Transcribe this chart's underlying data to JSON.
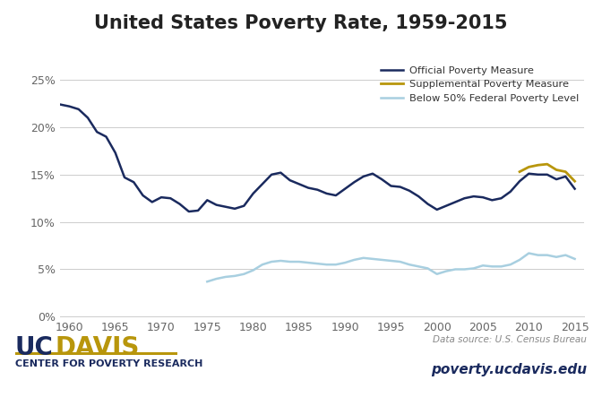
{
  "title": "United States Poverty Rate, 1959-2015",
  "title_fontsize": 15,
  "background_color": "#ffffff",
  "plot_bg_color": "#ffffff",
  "grid_color": "#cccccc",
  "official_color": "#1a2a5e",
  "supplemental_color": "#b8960c",
  "below50_color": "#a8cfe0",
  "official_label": "Official Poverty Measure",
  "supplemental_label": "Supplemental Poverty Measure",
  "below50_label": "Below 50% Federal Poverty Level",
  "data_source": "Data source: U.S. Census Bureau",
  "website": "poverty.ucdavis.edu",
  "ucdavis_uc": "UC",
  "ucdavis_davis": "DAVIS",
  "center_text": "CENTER FOR POVERTY RESEARCH",
  "ucdavis_gold": "#b8960c",
  "ucdavis_blue": "#1a2a5e",
  "ylim": [
    0,
    27
  ],
  "yticks": [
    0,
    5,
    10,
    15,
    20,
    25
  ],
  "ytick_labels": [
    "0%",
    "5%",
    "10%",
    "15%",
    "20%",
    "25%"
  ],
  "xticks": [
    1960,
    1965,
    1970,
    1975,
    1980,
    1985,
    1990,
    1995,
    2000,
    2005,
    2010,
    2015
  ],
  "official_years": [
    1959,
    1960,
    1961,
    1962,
    1963,
    1964,
    1965,
    1966,
    1967,
    1968,
    1969,
    1970,
    1971,
    1972,
    1973,
    1974,
    1975,
    1976,
    1977,
    1978,
    1979,
    1980,
    1981,
    1982,
    1983,
    1984,
    1985,
    1986,
    1987,
    1988,
    1989,
    1990,
    1991,
    1992,
    1993,
    1994,
    1995,
    1996,
    1997,
    1998,
    1999,
    2000,
    2001,
    2002,
    2003,
    2004,
    2005,
    2006,
    2007,
    2008,
    2009,
    2010,
    2011,
    2012,
    2013,
    2014,
    2015
  ],
  "official_values": [
    22.4,
    22.2,
    21.9,
    21.0,
    19.5,
    19.0,
    17.3,
    14.7,
    14.2,
    12.8,
    12.1,
    12.6,
    12.5,
    11.9,
    11.1,
    11.2,
    12.3,
    11.8,
    11.6,
    11.4,
    11.7,
    13.0,
    14.0,
    15.0,
    15.2,
    14.4,
    14.0,
    13.6,
    13.4,
    13.0,
    12.8,
    13.5,
    14.2,
    14.8,
    15.1,
    14.5,
    13.8,
    13.7,
    13.3,
    12.7,
    11.9,
    11.3,
    11.7,
    12.1,
    12.5,
    12.7,
    12.6,
    12.3,
    12.5,
    13.2,
    14.3,
    15.1,
    15.0,
    15.0,
    14.5,
    14.8,
    13.5
  ],
  "supplemental_years": [
    2009,
    2010,
    2011,
    2012,
    2013,
    2014,
    2015
  ],
  "supplemental_values": [
    15.3,
    15.8,
    16.0,
    16.1,
    15.5,
    15.3,
    14.3
  ],
  "below50_years": [
    1975,
    1976,
    1977,
    1978,
    1979,
    1980,
    1981,
    1982,
    1983,
    1984,
    1985,
    1986,
    1987,
    1988,
    1989,
    1990,
    1991,
    1992,
    1993,
    1994,
    1995,
    1996,
    1997,
    1998,
    1999,
    2000,
    2001,
    2002,
    2003,
    2004,
    2005,
    2006,
    2007,
    2008,
    2009,
    2010,
    2011,
    2012,
    2013,
    2014,
    2015
  ],
  "below50_values": [
    3.7,
    4.0,
    4.2,
    4.3,
    4.5,
    4.9,
    5.5,
    5.8,
    5.9,
    5.8,
    5.8,
    5.7,
    5.6,
    5.5,
    5.5,
    5.7,
    6.0,
    6.2,
    6.1,
    6.0,
    5.9,
    5.8,
    5.5,
    5.3,
    5.1,
    4.5,
    4.8,
    5.0,
    5.0,
    5.1,
    5.4,
    5.3,
    5.3,
    5.5,
    6.0,
    6.7,
    6.5,
    6.5,
    6.3,
    6.5,
    6.1
  ]
}
